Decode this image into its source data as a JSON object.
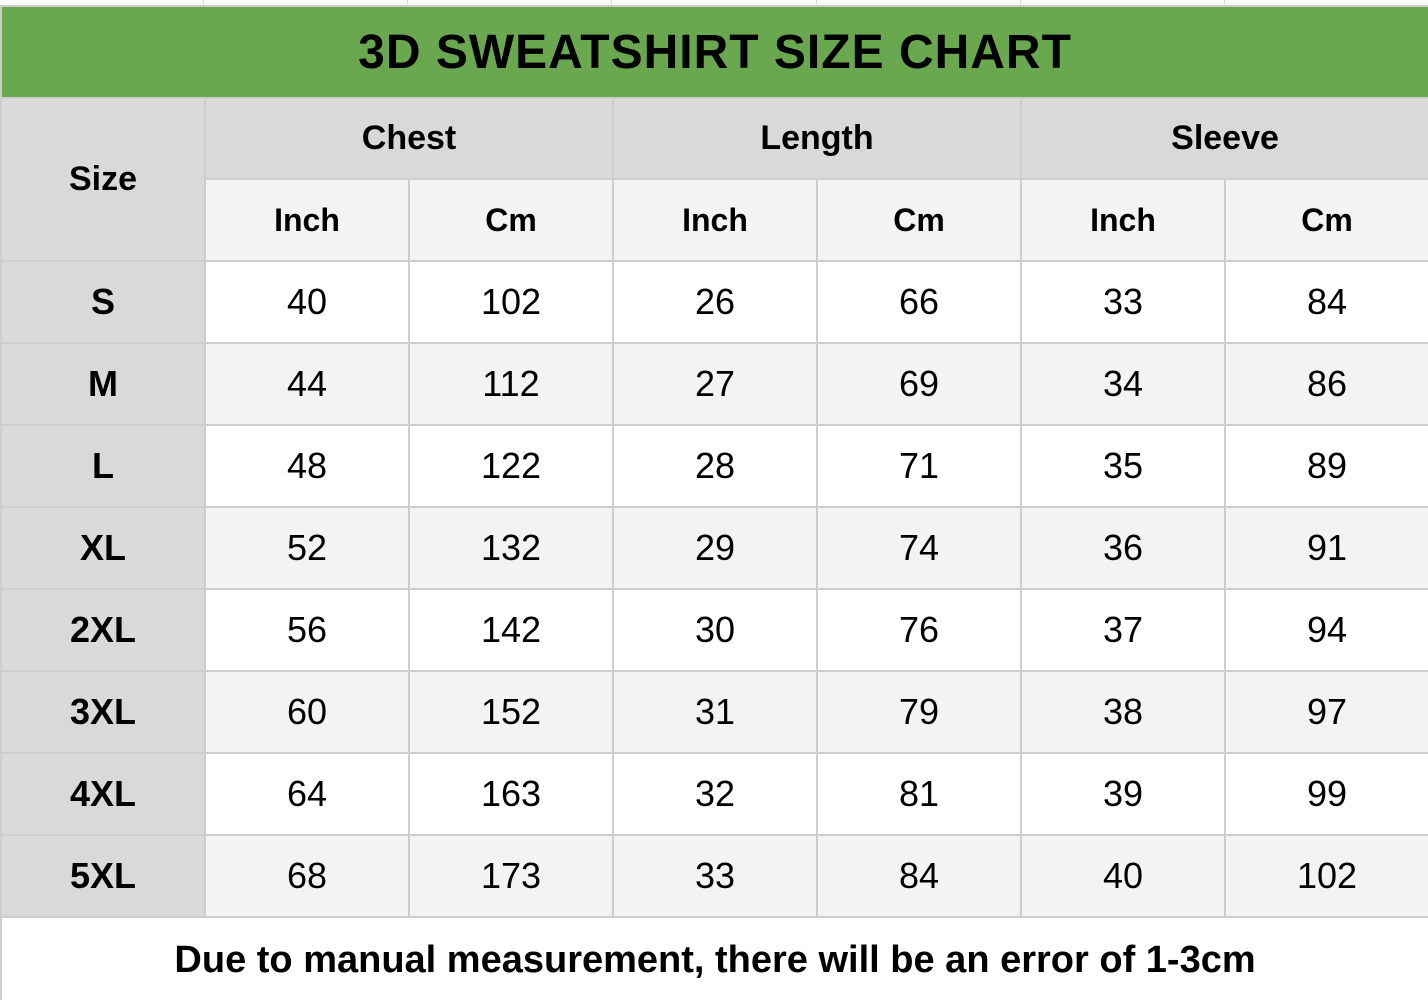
{
  "colors": {
    "title_bar_green": "#6aa84f",
    "title_text": "#ffffff",
    "group_header_bg": "#d9d9d9",
    "unit_header_bg": "#f3f3f3",
    "alt_row_bg": "#f3f3f3",
    "row_bg": "#ffffff",
    "note_text_red": "#ff0000",
    "grid_line": "#cdcdcd"
  },
  "chart_data": {
    "type": "table",
    "title": "3D SWEATSHIRT SIZE CHART",
    "row_header": "Size",
    "column_groups": [
      "Chest",
      "Length",
      "Sleeve"
    ],
    "unit_headers": [
      "Inch",
      "Cm",
      "Inch",
      "Cm",
      "Inch",
      "Cm"
    ],
    "rows": [
      {
        "size": "S",
        "values": [
          "40",
          "102",
          "26",
          "66",
          "33",
          "84"
        ]
      },
      {
        "size": "M",
        "values": [
          "44",
          "112",
          "27",
          "69",
          "34",
          "86"
        ]
      },
      {
        "size": "L",
        "values": [
          "48",
          "122",
          "28",
          "71",
          "35",
          "89"
        ]
      },
      {
        "size": "XL",
        "values": [
          "52",
          "132",
          "29",
          "74",
          "36",
          "91"
        ]
      },
      {
        "size": "2XL",
        "values": [
          "56",
          "142",
          "30",
          "76",
          "37",
          "94"
        ]
      },
      {
        "size": "3XL",
        "values": [
          "60",
          "152",
          "31",
          "79",
          "38",
          "97"
        ]
      },
      {
        "size": "4XL",
        "values": [
          "64",
          "163",
          "32",
          "81",
          "39",
          "99"
        ]
      },
      {
        "size": "5XL",
        "values": [
          "68",
          "173",
          "33",
          "84",
          "40",
          "102"
        ]
      }
    ],
    "footnote": "Due to manual measurement, there will be an error of 1-3cm"
  }
}
